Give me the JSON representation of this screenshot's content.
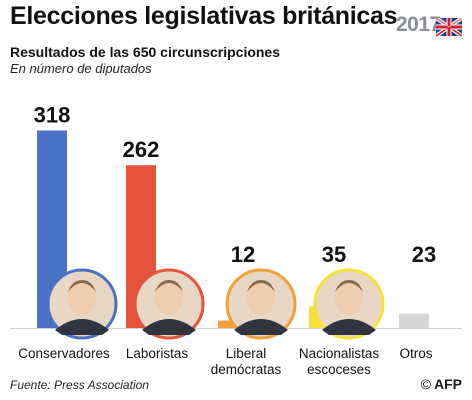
{
  "header": {
    "title": "Elecciones legislativas británicas",
    "subtitle": "Resultados de las 650 circunscripciones",
    "note": "En número de diputados",
    "year_logo": "2017"
  },
  "chart_data": {
    "type": "bar",
    "title": "Elecciones legislativas británicas",
    "subtitle": "Resultados de las 650 circunscripciones",
    "ylabel": "En número de diputados",
    "categories": [
      "Conservadores",
      "Laboristas",
      "Liberal demócratas",
      "Nacionalistas escoceses",
      "Otros"
    ],
    "category_lines": [
      [
        "Conservadores"
      ],
      [
        "Laboristas"
      ],
      [
        "Liberal",
        "demócratas"
      ],
      [
        "Nacionalistas",
        "escoceses"
      ],
      [
        "Otros"
      ]
    ],
    "values": [
      318,
      262,
      12,
      35,
      23
    ],
    "colors": [
      "#4a72c4",
      "#e5533d",
      "#f2a03d",
      "#f5e13a",
      "#d6d6d6"
    ],
    "portrait_rings": [
      "#4a72c4",
      "#e5533d",
      "#f2a03d",
      "#f5e13a",
      null
    ],
    "ylim": [
      0,
      330
    ],
    "grid": false,
    "legend": "none"
  },
  "footer": {
    "source": "Fuente: Press Association",
    "copyright": "©",
    "agency": "AFP"
  }
}
